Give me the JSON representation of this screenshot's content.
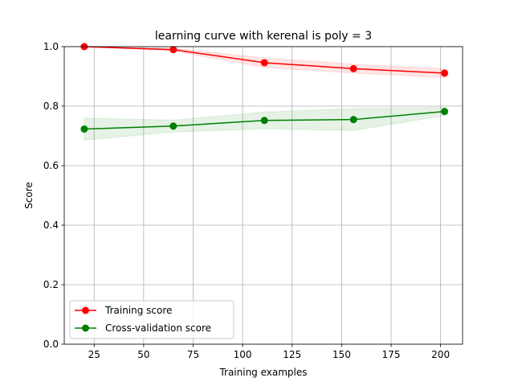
{
  "chart_data": {
    "type": "line",
    "title": "learning curve with kerenal is poly = 3",
    "xlabel": "Training examples",
    "ylabel": "Score",
    "xlim": [
      9.9,
      211.1
    ],
    "ylim": [
      0.0,
      1.0
    ],
    "xticks": [
      25,
      50,
      75,
      100,
      125,
      150,
      175,
      200
    ],
    "yticks": [
      0.0,
      0.2,
      0.4,
      0.6,
      0.8,
      1.0
    ],
    "xtick_labels": [
      "25",
      "50",
      "75",
      "100",
      "125",
      "150",
      "175",
      "200"
    ],
    "ytick_labels": [
      "0.0",
      "0.2",
      "0.4",
      "0.6",
      "0.8",
      "1.0"
    ],
    "grid": true,
    "legend_position": "lower-left",
    "x": [
      20,
      65,
      111,
      156,
      202
    ],
    "series": [
      {
        "name": "Training score",
        "color": "#ff0000",
        "values": [
          1.0,
          0.99,
          0.946,
          0.926,
          0.911
        ],
        "band_low": [
          1.0,
          0.985,
          0.93,
          0.911,
          0.896
        ],
        "band_high": [
          1.0,
          0.995,
          0.962,
          0.941,
          0.926
        ]
      },
      {
        "name": "Cross-validation score",
        "color": "#008000",
        "values": [
          0.723,
          0.733,
          0.752,
          0.755,
          0.782
        ],
        "band_low": [
          0.686,
          0.713,
          0.724,
          0.718,
          0.768
        ],
        "band_high": [
          0.76,
          0.753,
          0.78,
          0.792,
          0.796
        ]
      }
    ]
  }
}
